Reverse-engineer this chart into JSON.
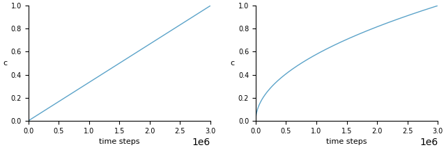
{
  "xlim": [
    0,
    3000000
  ],
  "ylim": [
    0,
    1.0
  ],
  "xlabel": "time steps",
  "ylabel": "c",
  "line_color": "#5ba3c9",
  "line_width": 1.0,
  "x_ticks": [
    0.0,
    0.5,
    1.0,
    1.5,
    2.0,
    2.5,
    3.0
  ],
  "y_ticks": [
    0.0,
    0.2,
    0.4,
    0.6,
    0.8,
    1.0
  ],
  "total_steps": 3000000,
  "figsize": [
    6.4,
    2.16
  ],
  "dpi": 100,
  "tick_fontsize": 7,
  "label_fontsize": 8
}
